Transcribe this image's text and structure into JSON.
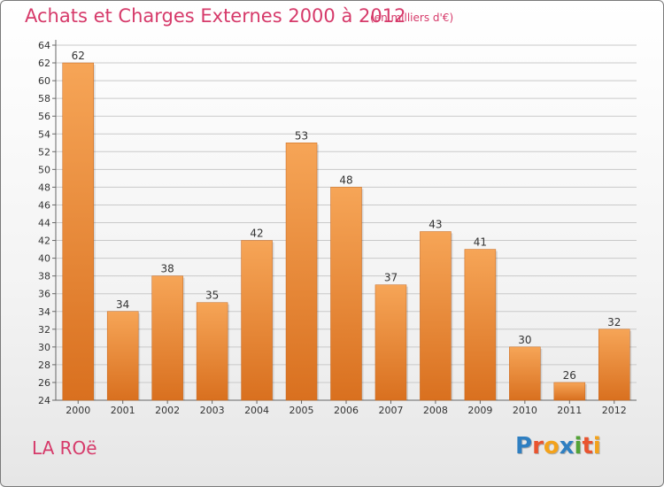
{
  "header": {
    "title": "Achats et Charges Externes 2000 à 2012",
    "subtitle": "(en milliers d'€)"
  },
  "footer": {
    "town": "LA ROë",
    "logo": {
      "letters": [
        "P",
        "r",
        "o",
        "x",
        "i",
        "t",
        "i"
      ],
      "colors": [
        "#2f7fc1",
        "#e9542f",
        "#f3a21b",
        "#2f7fc1",
        "#53a336",
        "#e9542f",
        "#f3a21b"
      ]
    }
  },
  "colors": {
    "bar_light": "#f6a557",
    "bar_dark": "#d9701f",
    "grid": "#c9c9c9",
    "text": "#333333"
  },
  "chart_data": {
    "type": "bar",
    "title": "Achats et Charges Externes 2000 à 2012",
    "subtitle": "(en milliers d'€)",
    "categories": [
      "2000",
      "2001",
      "2002",
      "2003",
      "2004",
      "2005",
      "2006",
      "2007",
      "2008",
      "2009",
      "2010",
      "2011",
      "2012"
    ],
    "values": [
      62,
      34,
      38,
      35,
      42,
      53,
      48,
      37,
      43,
      41,
      30,
      26,
      32
    ],
    "ylim": [
      24,
      64
    ],
    "ytick_step": 2,
    "grid": true,
    "data_labels": true
  }
}
